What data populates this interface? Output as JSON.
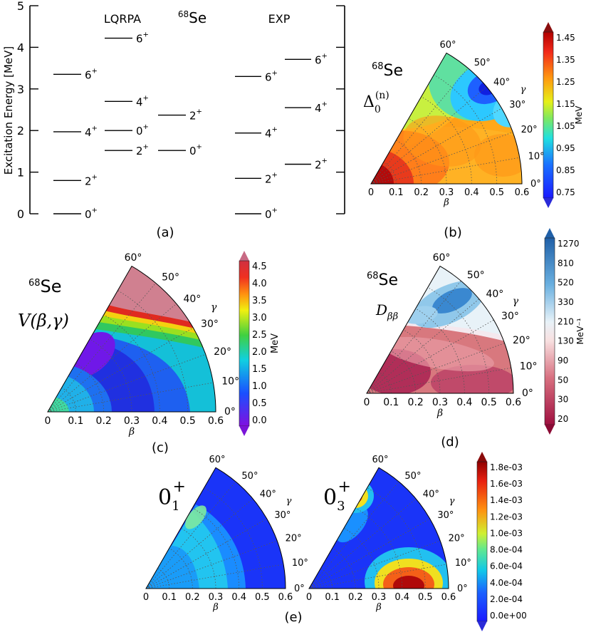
{
  "panels": {
    "a": {
      "label": "(a)",
      "ylabel": "Excitation Energy [MeV]",
      "yticks": [
        "0",
        "1",
        "2",
        "3",
        "4",
        "5"
      ],
      "nucleus_mass": "68",
      "nucleus_symbol": "Se",
      "col_theory": "LQRPA",
      "col_exp": "EXP",
      "levels_theory_left": [
        {
          "E": 0.0,
          "spin": "0",
          "parity": "+"
        },
        {
          "E": 0.8,
          "spin": "2",
          "parity": "+"
        },
        {
          "E": 1.97,
          "spin": "4",
          "parity": "+"
        },
        {
          "E": 3.35,
          "spin": "6",
          "parity": "+"
        }
      ],
      "levels_theory_mid": [
        {
          "E": 1.52,
          "spin": "2",
          "parity": "+"
        },
        {
          "E": 2.0,
          "spin": "0",
          "parity": "+"
        },
        {
          "E": 2.7,
          "spin": "4",
          "parity": "+"
        },
        {
          "E": 4.22,
          "spin": "6",
          "parity": "+"
        }
      ],
      "levels_theory_right": [
        {
          "E": 1.52,
          "spin": "0",
          "parity": "+"
        },
        {
          "E": 2.37,
          "spin": "2",
          "parity": "+"
        }
      ],
      "levels_exp_left": [
        {
          "E": 0.0,
          "spin": "0",
          "parity": "+"
        },
        {
          "E": 0.85,
          "spin": "2",
          "parity": "+"
        },
        {
          "E": 1.94,
          "spin": "4",
          "parity": "+"
        },
        {
          "E": 3.3,
          "spin": "6",
          "parity": "+"
        }
      ],
      "levels_exp_right": [
        {
          "E": 1.19,
          "spin": "2",
          "parity": "+"
        },
        {
          "E": 2.55,
          "spin": "4",
          "parity": "+"
        },
        {
          "E": 3.71,
          "spin": "6",
          "parity": "+"
        }
      ]
    },
    "b": {
      "label": "(b)",
      "nucleus_mass": "68",
      "nucleus_symbol": "Se",
      "quantity": "Δ",
      "quantity_sub": "0",
      "quantity_sup": "(n)",
      "colorbar_ticks": [
        "1.45",
        "1.35",
        "1.25",
        "1.15",
        "1.05",
        "0.95",
        "0.85",
        "0.75"
      ],
      "colorbar_unit": "MeV"
    },
    "c": {
      "label": "(c)",
      "nucleus_mass": "68",
      "nucleus_symbol": "Se",
      "quantity": "V(β,γ)",
      "colorbar_ticks": [
        "4.5",
        "4.0",
        "3.5",
        "3.0",
        "2.5",
        "2.0",
        "1.5",
        "1.0",
        "0.5",
        "0.0"
      ],
      "colorbar_unit": "MeV"
    },
    "d": {
      "label": "(d)",
      "nucleus_mass": "68",
      "nucleus_symbol": "Se",
      "quantity": "D",
      "quantity_sub": "ββ",
      "colorbar_ticks": [
        "1270",
        "810",
        "520",
        "330",
        "210",
        "130",
        "90",
        "50",
        "30",
        "20"
      ],
      "colorbar_unit": "MeV⁻¹"
    },
    "e": {
      "label": "(e)",
      "state1_spin": "0",
      "state1_sub": "1",
      "state1_parity": "+",
      "state2_spin": "0",
      "state2_sub": "3",
      "state2_parity": "+",
      "colorbar_ticks": [
        "1.8e-03",
        "1.6e-03",
        "1.4e-03",
        "1.2e-03",
        "1.0e-03",
        "8.0e-04",
        "6.0e-04",
        "4.0e-04",
        "2.0e-04",
        "0.0e+00"
      ]
    }
  },
  "polar_axes": {
    "beta_label": "β",
    "gamma_label": "γ",
    "beta_ticks": [
      "0",
      "0.1",
      "0.2",
      "0.3",
      "0.4",
      "0.5",
      "0.6"
    ],
    "gamma_ticks": [
      "0°",
      "10°",
      "20°",
      "30°",
      "40°",
      "50°",
      "60°"
    ]
  }
}
